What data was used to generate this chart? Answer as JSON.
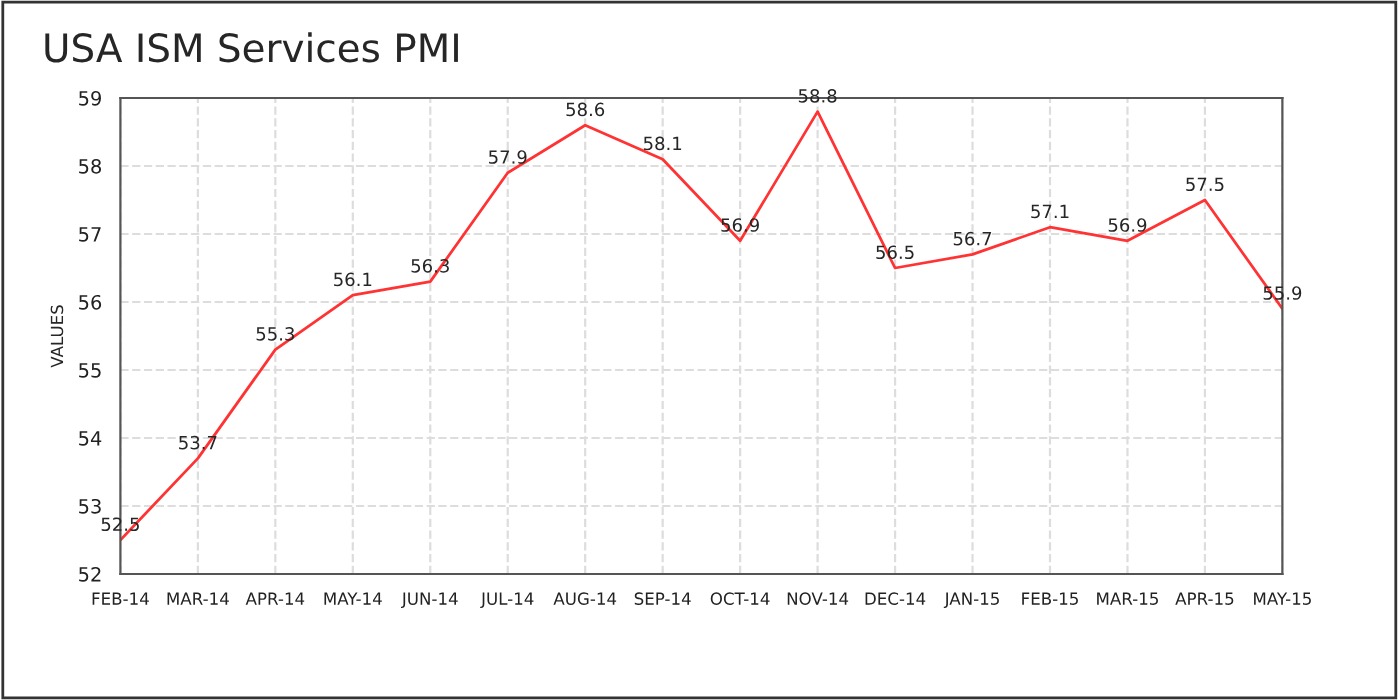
{
  "chart_data": {
    "type": "line",
    "title": "USA ISM Services PMI",
    "ylabel": "VALUES",
    "categories": [
      "FEB-14",
      "MAR-14",
      "APR-14",
      "MAY-14",
      "JUN-14",
      "JUL-14",
      "AUG-14",
      "SEP-14",
      "OCT-14",
      "NOV-14",
      "DEC-14",
      "JAN-15",
      "FEB-15",
      "MAR-15",
      "APR-15",
      "MAY-15"
    ],
    "series": [
      {
        "color": "#ff3333",
        "values": [
          52.5,
          53.7,
          55.3,
          56.1,
          56.3,
          57.9,
          58.6,
          58.1,
          56.9,
          58.8,
          56.5,
          56.7,
          57.1,
          56.9,
          57.5,
          55.9
        ]
      }
    ],
    "ylim": [
      52,
      59
    ],
    "yticks": [
      52,
      53,
      54,
      55,
      56,
      57,
      58,
      59
    ],
    "grid": true,
    "data_labels": true,
    "line_style": "solid",
    "marker": "none"
  }
}
